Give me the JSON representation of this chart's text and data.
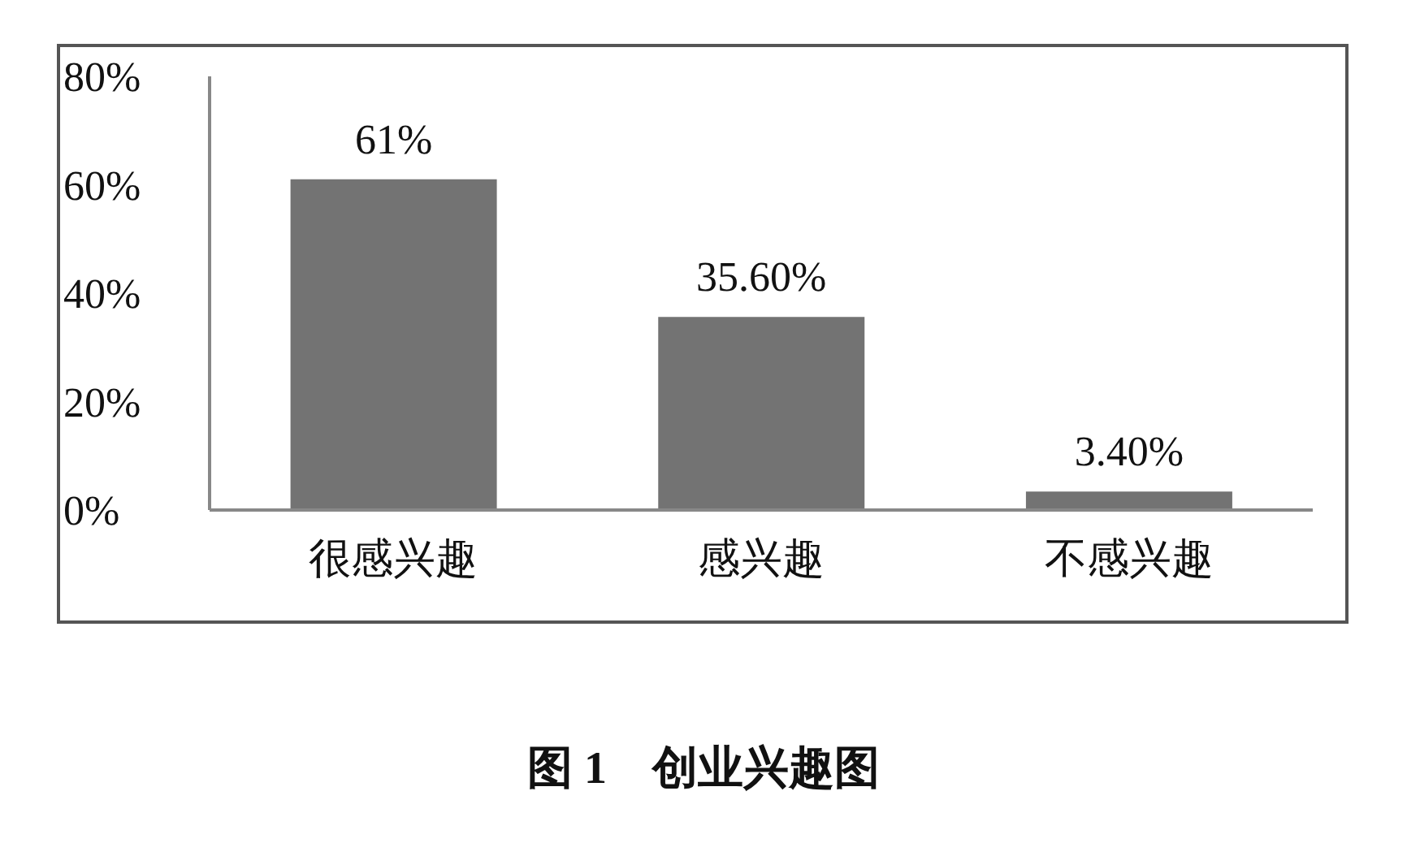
{
  "chart_data": {
    "type": "bar",
    "title": "图 1　创业兴趣图",
    "categories": [
      "很感兴趣",
      "感兴趣",
      "不感兴趣"
    ],
    "values": [
      61,
      35.6,
      3.4
    ],
    "value_labels": [
      "61%",
      "35.60%",
      "3.40%"
    ],
    "color": "#737373",
    "ylim": [
      0,
      80
    ],
    "yticks": [
      {
        "value": 0,
        "label": "0%"
      },
      {
        "value": 20,
        "label": "20%"
      },
      {
        "value": 40,
        "label": "40%"
      },
      {
        "value": 60,
        "label": "60%"
      },
      {
        "value": 80,
        "label": "80%"
      }
    ],
    "grid": false,
    "legend": false
  }
}
